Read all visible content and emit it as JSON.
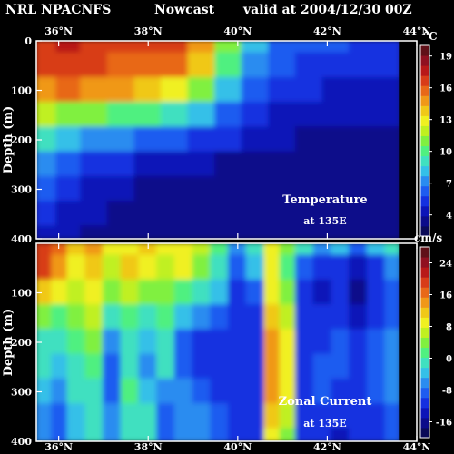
{
  "header": {
    "model": "NRL NPACNFS",
    "mode": "Nowcast",
    "valid": "valid at 2004/12/30 00Z"
  },
  "chart_data": [
    {
      "type": "heatmap",
      "title": "Temperature",
      "subtitle": "at 135E",
      "xlabel": "",
      "ylabel": "Depth (m)",
      "x_ticks": [
        "36°N",
        "38°N",
        "40°N",
        "42°N",
        "44°N"
      ],
      "x_tick_values": [
        36,
        38,
        40,
        42,
        44
      ],
      "xlim": [
        35.5,
        44
      ],
      "y_ticks": [
        "0",
        "100",
        "200",
        "300",
        "400"
      ],
      "y_tick_values": [
        0,
        100,
        200,
        300,
        400
      ],
      "ylim": [
        0,
        400
      ],
      "units": "°C",
      "colorbar_ticks": [
        "19",
        "16",
        "13",
        "10",
        "7",
        "4"
      ],
      "colorbar_tick_values": [
        19,
        16,
        13,
        10,
        7,
        4
      ],
      "colorbar_range": [
        2,
        20
      ],
      "land_from_lat": 43.6,
      "field": [
        {
          "lat": 35.7,
          "values": [
            17,
            16.5,
            15,
            12,
            9,
            7,
            6,
            5,
            4.5
          ]
        },
        {
          "lat": 36.2,
          "values": [
            17.5,
            17,
            15.5,
            11,
            8,
            6,
            5,
            4.5,
            4
          ]
        },
        {
          "lat": 36.8,
          "values": [
            17,
            16.5,
            15,
            11,
            7,
            5.5,
            4.5,
            4,
            3.5
          ]
        },
        {
          "lat": 37.4,
          "values": [
            16.5,
            16,
            14.5,
            10.5,
            7,
            5,
            4,
            3.5,
            3
          ]
        },
        {
          "lat": 38.0,
          "values": [
            16.5,
            16,
            14,
            10,
            6.5,
            4.5,
            3.5,
            3,
            3
          ]
        },
        {
          "lat": 38.6,
          "values": [
            16.5,
            15.5,
            13,
            9,
            6,
            4,
            3.5,
            3,
            3
          ]
        },
        {
          "lat": 39.2,
          "values": [
            15,
            13.5,
            11,
            8,
            5.5,
            4,
            3.5,
            3,
            3
          ]
        },
        {
          "lat": 39.8,
          "values": [
            11,
            10,
            8.5,
            6.5,
            5,
            3.5,
            3,
            3,
            3
          ]
        },
        {
          "lat": 40.4,
          "values": [
            8,
            7.5,
            6.5,
            5.5,
            4,
            3.5,
            3,
            3,
            3
          ]
        },
        {
          "lat": 41.0,
          "values": [
            6.5,
            6,
            5.5,
            4.5,
            4,
            3.5,
            3,
            3,
            3
          ]
        },
        {
          "lat": 41.6,
          "values": [
            6,
            5.5,
            5,
            4,
            3.5,
            3,
            3,
            3,
            3
          ]
        },
        {
          "lat": 42.2,
          "values": [
            6,
            5.5,
            4.5,
            4,
            3.5,
            3,
            3,
            3,
            3
          ]
        },
        {
          "lat": 42.8,
          "values": [
            5.5,
            5,
            4.5,
            4,
            3.5,
            3,
            3,
            3,
            3
          ]
        },
        {
          "lat": 43.4,
          "values": [
            5.5,
            5,
            4.5,
            4,
            3.5,
            3,
            3,
            3,
            3
          ]
        }
      ],
      "depths": [
        0,
        50,
        100,
        150,
        200,
        250,
        300,
        350,
        400
      ]
    },
    {
      "type": "heatmap",
      "title": "Zonal Current",
      "subtitle": "at 135E",
      "xlabel": "",
      "ylabel": "Depth (m)",
      "x_ticks": [
        "36°N",
        "38°N",
        "40°N",
        "42°N",
        "44°N"
      ],
      "x_tick_values": [
        36,
        38,
        40,
        42,
        44
      ],
      "xlim": [
        35.5,
        44
      ],
      "y_ticks": [
        "100",
        "200",
        "300",
        "400"
      ],
      "y_tick_values": [
        100,
        200,
        300,
        400
      ],
      "ylim": [
        0,
        400
      ],
      "units": "cm/s",
      "colorbar_ticks": [
        "24",
        "16",
        "8",
        "0",
        "-8",
        "-16"
      ],
      "colorbar_tick_values": [
        24,
        16,
        8,
        0,
        -8,
        -16
      ],
      "colorbar_range": [
        -20,
        28
      ],
      "land_from_lat": 43.6,
      "field": [
        {
          "lat": 35.7,
          "values": [
            20,
            18,
            12,
            4,
            0,
            -2,
            -4,
            -5,
            -6
          ]
        },
        {
          "lat": 36.0,
          "values": [
            16,
            14,
            8,
            2,
            -2,
            -4,
            -6,
            -8,
            -8
          ]
        },
        {
          "lat": 36.4,
          "values": [
            12,
            10,
            6,
            4,
            2,
            0,
            -2,
            -4,
            -4
          ]
        },
        {
          "lat": 36.8,
          "values": [
            14,
            12,
            8,
            6,
            4,
            2,
            0,
            -2,
            -2
          ]
        },
        {
          "lat": 37.2,
          "values": [
            8,
            6,
            4,
            0,
            -6,
            -8,
            -8,
            -6,
            -6
          ]
        },
        {
          "lat": 37.6,
          "values": [
            10,
            12,
            6,
            2,
            0,
            0,
            2,
            0,
            0
          ]
        },
        {
          "lat": 38.0,
          "values": [
            12,
            10,
            4,
            0,
            -4,
            -6,
            -4,
            -2,
            -2
          ]
        },
        {
          "lat": 38.4,
          "values": [
            8,
            6,
            4,
            2,
            0,
            -2,
            -6,
            -8,
            -8
          ]
        },
        {
          "lat": 38.8,
          "values": [
            10,
            8,
            2,
            -4,
            -8,
            -8,
            -6,
            -6,
            -6
          ]
        },
        {
          "lat": 39.2,
          "values": [
            6,
            4,
            0,
            -6,
            -10,
            -10,
            -8,
            -6,
            -6
          ]
        },
        {
          "lat": 39.6,
          "values": [
            2,
            0,
            -4,
            -8,
            -10,
            -10,
            -10,
            -8,
            -8
          ]
        },
        {
          "lat": 40.0,
          "values": [
            -6,
            -8,
            -10,
            -10,
            -10,
            -12,
            -12,
            -10,
            -10
          ]
        },
        {
          "lat": 40.4,
          "values": [
            0,
            -4,
            -8,
            -10,
            -12,
            -12,
            -12,
            -10,
            -10
          ]
        },
        {
          "lat": 40.8,
          "values": [
            10,
            8,
            10,
            12,
            14,
            14,
            14,
            12,
            10
          ]
        },
        {
          "lat": 41.1,
          "values": [
            4,
            2,
            4,
            6,
            8,
            8,
            8,
            6,
            4
          ]
        },
        {
          "lat": 41.5,
          "values": [
            -2,
            -8,
            -10,
            -12,
            -10,
            -10,
            -10,
            -12,
            -12
          ]
        },
        {
          "lat": 41.9,
          "values": [
            -6,
            -12,
            -14,
            -12,
            -10,
            -8,
            -8,
            -10,
            -12
          ]
        },
        {
          "lat": 42.3,
          "values": [
            -4,
            -10,
            -12,
            -10,
            -8,
            -8,
            -10,
            -12,
            -14
          ]
        },
        {
          "lat": 42.7,
          "values": [
            -8,
            -14,
            -16,
            -14,
            -12,
            -10,
            -10,
            -10,
            -12
          ]
        },
        {
          "lat": 43.1,
          "values": [
            -4,
            -10,
            -12,
            -10,
            -8,
            -8,
            -8,
            -10,
            -10
          ]
        },
        {
          "lat": 43.5,
          "values": [
            -2,
            -6,
            -8,
            -8,
            -6,
            -6,
            -6,
            -8,
            -8
          ]
        }
      ],
      "depths": [
        0,
        50,
        100,
        150,
        200,
        250,
        300,
        350,
        400
      ]
    }
  ]
}
